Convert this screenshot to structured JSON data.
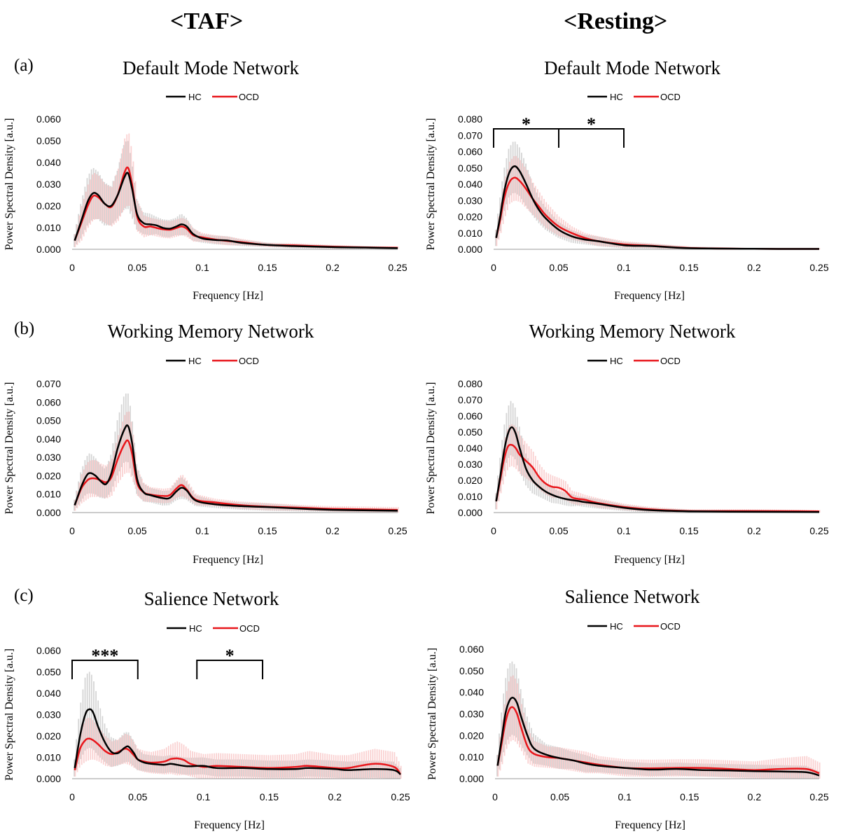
{
  "headers": {
    "left": "<TAF>",
    "right": "<Resting>"
  },
  "panel_letters": [
    "(a)",
    "(b)",
    "(c)"
  ],
  "colors": {
    "hc": "#000000",
    "ocd": "#e8161b",
    "hc_band": "#c8c8c8",
    "ocd_band": "#f7b4b4"
  },
  "chart_data": [
    {
      "type": "line",
      "title": "Default Mode Network",
      "xlabel": "Frequency [Hz]",
      "ylabel": "Power Spectral Density [a.u.]",
      "xlim": [
        0,
        0.25
      ],
      "ylim": [
        0,
        0.06
      ],
      "yticks": [
        "0.000",
        "0.010",
        "0.020",
        "0.030",
        "0.040",
        "0.050",
        "0.060"
      ],
      "xticks": [
        "0",
        "0.05",
        "0.1",
        "0.15",
        "0.2",
        "0.25"
      ],
      "x": [
        0.002,
        0.007,
        0.012,
        0.016,
        0.02,
        0.025,
        0.03,
        0.035,
        0.04,
        0.043,
        0.046,
        0.05,
        0.055,
        0.06,
        0.065,
        0.07,
        0.075,
        0.08,
        0.084,
        0.088,
        0.093,
        0.1,
        0.11,
        0.12,
        0.13,
        0.15,
        0.17,
        0.2,
        0.225,
        0.25
      ],
      "series": [
        {
          "name": "HC",
          "values": [
            0.004,
            0.013,
            0.022,
            0.0258,
            0.025,
            0.021,
            0.02,
            0.025,
            0.033,
            0.035,
            0.028,
            0.016,
            0.012,
            0.0115,
            0.011,
            0.0098,
            0.0095,
            0.0105,
            0.0115,
            0.0105,
            0.007,
            0.005,
            0.0043,
            0.004,
            0.003,
            0.002,
            0.0015,
            0.001,
            0.0008,
            0.0005
          ],
          "err": [
            0.003,
            0.008,
            0.011,
            0.012,
            0.011,
            0.01,
            0.009,
            0.011,
            0.015,
            0.016,
            0.013,
            0.007,
            0.005,
            0.005,
            0.004,
            0.004,
            0.004,
            0.004,
            0.005,
            0.004,
            0.003,
            0.002,
            0.002,
            0.002,
            0.0015,
            0.001,
            0.001,
            0.0008,
            0.0006,
            0.0005
          ]
        },
        {
          "name": "OCD",
          "values": [
            0.004,
            0.012,
            0.02,
            0.0245,
            0.024,
            0.021,
            0.0195,
            0.025,
            0.035,
            0.0375,
            0.03,
            0.015,
            0.0105,
            0.0105,
            0.0098,
            0.0092,
            0.009,
            0.0098,
            0.0105,
            0.0095,
            0.0065,
            0.0055,
            0.0045,
            0.0038,
            0.0033,
            0.002,
            0.0018,
            0.0012,
            0.0009,
            0.0007
          ],
          "err": [
            0.003,
            0.008,
            0.01,
            0.011,
            0.01,
            0.009,
            0.009,
            0.012,
            0.016,
            0.017,
            0.014,
            0.007,
            0.005,
            0.004,
            0.004,
            0.004,
            0.004,
            0.004,
            0.004,
            0.004,
            0.003,
            0.002,
            0.002,
            0.002,
            0.0015,
            0.001,
            0.001,
            0.0008,
            0.0006,
            0.0005
          ]
        }
      ],
      "significance": []
    },
    {
      "type": "line",
      "title": "Default Mode Network",
      "xlabel": "Frequency [Hz]",
      "ylabel": "Power Spectral Density [a.u.]",
      "xlim": [
        0,
        0.25
      ],
      "ylim": [
        0,
        0.08
      ],
      "yticks": [
        "0.000",
        "0.010",
        "0.020",
        "0.030",
        "0.040",
        "0.050",
        "0.060",
        "0.070",
        "0.080"
      ],
      "xticks": [
        "0",
        "0.05",
        "0.1",
        "0.15",
        "0.2",
        "0.25"
      ],
      "x": [
        0.002,
        0.005,
        0.008,
        0.012,
        0.016,
        0.02,
        0.025,
        0.03,
        0.035,
        0.04,
        0.05,
        0.06,
        0.07,
        0.08,
        0.1,
        0.12,
        0.15,
        0.2,
        0.25
      ],
      "series": [
        {
          "name": "HC",
          "values": [
            0.007,
            0.02,
            0.035,
            0.047,
            0.051,
            0.048,
            0.04,
            0.031,
            0.024,
            0.019,
            0.012,
            0.008,
            0.006,
            0.005,
            0.0025,
            0.002,
            0.0007,
            0.0003,
            0.0002
          ],
          "err": [
            0.005,
            0.01,
            0.013,
            0.015,
            0.016,
            0.015,
            0.013,
            0.01,
            0.008,
            0.007,
            0.005,
            0.004,
            0.003,
            0.003,
            0.002,
            0.0015,
            0.001,
            0.0005,
            0.0004
          ]
        },
        {
          "name": "OCD",
          "values": [
            0.007,
            0.018,
            0.031,
            0.041,
            0.044,
            0.042,
            0.037,
            0.031,
            0.026,
            0.021,
            0.014,
            0.01,
            0.007,
            0.005,
            0.003,
            0.0022,
            0.0008,
            0.0003,
            0.0002
          ],
          "err": [
            0.005,
            0.009,
            0.012,
            0.013,
            0.014,
            0.013,
            0.012,
            0.01,
            0.009,
            0.008,
            0.006,
            0.004,
            0.003,
            0.003,
            0.002,
            0.0015,
            0.001,
            0.0005,
            0.0004
          ]
        }
      ],
      "significance": [
        {
          "range": [
            0,
            0.05
          ],
          "label": "*"
        },
        {
          "range": [
            0.05,
            0.1
          ],
          "label": "*"
        }
      ]
    },
    {
      "type": "line",
      "title": "Working Memory Network",
      "xlabel": "Frequency [Hz]",
      "ylabel": "Power Spectral Density [a.u.]",
      "xlim": [
        0,
        0.25
      ],
      "ylim": [
        0,
        0.07
      ],
      "yticks": [
        "0.000",
        "0.010",
        "0.020",
        "0.030",
        "0.040",
        "0.050",
        "0.060",
        "0.070"
      ],
      "xticks": [
        "0",
        "0.05",
        "0.1",
        "0.15",
        "0.2",
        "0.25"
      ],
      "x": [
        0.002,
        0.007,
        0.011,
        0.014,
        0.018,
        0.022,
        0.026,
        0.03,
        0.035,
        0.04,
        0.043,
        0.046,
        0.05,
        0.055,
        0.06,
        0.07,
        0.075,
        0.08,
        0.084,
        0.088,
        0.095,
        0.11,
        0.13,
        0.15,
        0.18,
        0.2,
        0.25
      ],
      "series": [
        {
          "name": "HC",
          "values": [
            0.004,
            0.014,
            0.02,
            0.0215,
            0.02,
            0.017,
            0.0155,
            0.021,
            0.035,
            0.045,
            0.047,
            0.038,
            0.018,
            0.011,
            0.0095,
            0.0078,
            0.008,
            0.0115,
            0.0135,
            0.012,
            0.0065,
            0.0045,
            0.0035,
            0.003,
            0.002,
            0.0015,
            0.001
          ],
          "err": [
            0.003,
            0.008,
            0.01,
            0.011,
            0.01,
            0.009,
            0.008,
            0.01,
            0.015,
            0.018,
            0.019,
            0.016,
            0.008,
            0.005,
            0.004,
            0.004,
            0.004,
            0.005,
            0.006,
            0.005,
            0.003,
            0.002,
            0.002,
            0.002,
            0.0015,
            0.001,
            0.001
          ]
        },
        {
          "name": "OCD",
          "values": [
            0.004,
            0.013,
            0.017,
            0.0185,
            0.0185,
            0.0175,
            0.0165,
            0.019,
            0.029,
            0.037,
            0.039,
            0.032,
            0.016,
            0.011,
            0.0098,
            0.009,
            0.0095,
            0.013,
            0.015,
            0.0125,
            0.007,
            0.0055,
            0.004,
            0.0032,
            0.0025,
            0.002,
            0.0015
          ],
          "err": [
            0.003,
            0.008,
            0.01,
            0.01,
            0.01,
            0.009,
            0.009,
            0.01,
            0.013,
            0.016,
            0.017,
            0.014,
            0.007,
            0.005,
            0.004,
            0.004,
            0.004,
            0.005,
            0.006,
            0.005,
            0.003,
            0.002,
            0.002,
            0.002,
            0.0015,
            0.0015,
            0.0015
          ]
        }
      ],
      "significance": []
    },
    {
      "type": "line",
      "title": "Working Memory Network",
      "xlabel": "Frequency [Hz]",
      "ylabel": "Power Spectral Density [a.u.]",
      "xlim": [
        0,
        0.25
      ],
      "ylim": [
        0,
        0.08
      ],
      "yticks": [
        "0.000",
        "0.010",
        "0.020",
        "0.030",
        "0.040",
        "0.050",
        "0.060",
        "0.070",
        "0.080"
      ],
      "xticks": [
        "0",
        "0.05",
        "0.1",
        "0.15",
        "0.2",
        "0.25"
      ],
      "x": [
        0.002,
        0.005,
        0.008,
        0.011,
        0.014,
        0.017,
        0.02,
        0.025,
        0.03,
        0.035,
        0.04,
        0.045,
        0.05,
        0.055,
        0.06,
        0.065,
        0.07,
        0.08,
        0.1,
        0.12,
        0.15,
        0.2,
        0.25
      ],
      "series": [
        {
          "name": "HC",
          "values": [
            0.007,
            0.022,
            0.038,
            0.049,
            0.053,
            0.049,
            0.04,
            0.027,
            0.02,
            0.016,
            0.013,
            0.011,
            0.0095,
            0.0085,
            0.0078,
            0.0072,
            0.0065,
            0.0055,
            0.003,
            0.0015,
            0.0008,
            0.0005,
            0.0003
          ],
          "err": [
            0.005,
            0.01,
            0.014,
            0.016,
            0.017,
            0.016,
            0.014,
            0.01,
            0.008,
            0.006,
            0.005,
            0.005,
            0.004,
            0.004,
            0.004,
            0.003,
            0.003,
            0.003,
            0.002,
            0.0015,
            0.001,
            0.0008,
            0.0005
          ]
        },
        {
          "name": "OCD",
          "values": [
            0.007,
            0.02,
            0.033,
            0.041,
            0.042,
            0.04,
            0.036,
            0.032,
            0.028,
            0.022,
            0.018,
            0.016,
            0.0155,
            0.0135,
            0.0095,
            0.0085,
            0.008,
            0.006,
            0.0035,
            0.002,
            0.001,
            0.001,
            0.0008
          ],
          "err": [
            0.005,
            0.009,
            0.012,
            0.013,
            0.013,
            0.013,
            0.012,
            0.011,
            0.01,
            0.008,
            0.007,
            0.007,
            0.006,
            0.006,
            0.004,
            0.004,
            0.003,
            0.003,
            0.002,
            0.0015,
            0.001,
            0.001,
            0.0008
          ]
        }
      ],
      "significance": []
    },
    {
      "type": "line",
      "title": "Salience Network",
      "xlabel": "Frequency [Hz]",
      "ylabel": "Power Spectral Density [a.u.]",
      "xlim": [
        0,
        0.25
      ],
      "ylim": [
        0,
        0.06
      ],
      "yticks": [
        "0.000",
        "0.010",
        "0.020",
        "0.030",
        "0.040",
        "0.050",
        "0.060"
      ],
      "xticks": [
        "0",
        "0.05",
        "0.1",
        "0.15",
        "0.2",
        "0.25"
      ],
      "x": [
        0.002,
        0.006,
        0.01,
        0.013,
        0.016,
        0.02,
        0.025,
        0.03,
        0.035,
        0.04,
        0.043,
        0.047,
        0.05,
        0.055,
        0.06,
        0.07,
        0.075,
        0.08,
        0.085,
        0.09,
        0.1,
        0.11,
        0.13,
        0.15,
        0.17,
        0.18,
        0.2,
        0.21,
        0.23,
        0.245,
        0.25
      ],
      "series": [
        {
          "name": "HC",
          "values": [
            0.005,
            0.02,
            0.03,
            0.0325,
            0.031,
            0.024,
            0.017,
            0.0125,
            0.012,
            0.0145,
            0.015,
            0.012,
            0.009,
            0.0075,
            0.007,
            0.0065,
            0.007,
            0.0065,
            0.006,
            0.0058,
            0.006,
            0.005,
            0.005,
            0.0045,
            0.0045,
            0.005,
            0.0045,
            0.004,
            0.0045,
            0.004,
            0.002
          ],
          "err": [
            0.004,
            0.012,
            0.017,
            0.018,
            0.017,
            0.013,
            0.009,
            0.007,
            0.006,
            0.007,
            0.007,
            0.006,
            0.005,
            0.004,
            0.004,
            0.004,
            0.004,
            0.004,
            0.004,
            0.004,
            0.004,
            0.004,
            0.004,
            0.004,
            0.004,
            0.004,
            0.004,
            0.004,
            0.004,
            0.004,
            0.003
          ]
        },
        {
          "name": "OCD",
          "values": [
            0.004,
            0.014,
            0.018,
            0.0188,
            0.018,
            0.016,
            0.013,
            0.0115,
            0.0125,
            0.014,
            0.0135,
            0.011,
            0.009,
            0.008,
            0.0075,
            0.008,
            0.0092,
            0.0095,
            0.0088,
            0.007,
            0.0055,
            0.006,
            0.0055,
            0.005,
            0.0055,
            0.006,
            0.005,
            0.005,
            0.007,
            0.0055,
            0.002
          ],
          "err": [
            0.003,
            0.008,
            0.01,
            0.01,
            0.009,
            0.008,
            0.007,
            0.006,
            0.006,
            0.007,
            0.007,
            0.006,
            0.005,
            0.005,
            0.005,
            0.006,
            0.007,
            0.008,
            0.007,
            0.006,
            0.006,
            0.006,
            0.006,
            0.006,
            0.006,
            0.007,
            0.006,
            0.006,
            0.007,
            0.007,
            0.004
          ]
        }
      ],
      "significance": [
        {
          "range": [
            0,
            0.05
          ],
          "label": "***"
        },
        {
          "range": [
            0.095,
            0.145
          ],
          "label": "*"
        }
      ]
    },
    {
      "type": "line",
      "title": "Salience Network",
      "xlabel": "Frequency [Hz]",
      "ylabel": "Power Spectral Density [a.u.]",
      "xlim": [
        0,
        0.25
      ],
      "ylim": [
        0,
        0.06
      ],
      "yticks": [
        "0.000",
        "0.010",
        "0.020",
        "0.030",
        "0.040",
        "0.050",
        "0.060"
      ],
      "xticks": [
        "0",
        "0.05",
        "0.1",
        "0.15",
        "0.2",
        "0.25"
      ],
      "x": [
        0.002,
        0.005,
        0.008,
        0.011,
        0.014,
        0.017,
        0.02,
        0.025,
        0.03,
        0.04,
        0.05,
        0.06,
        0.07,
        0.08,
        0.1,
        0.12,
        0.14,
        0.16,
        0.18,
        0.2,
        0.22,
        0.24,
        0.25
      ],
      "series": [
        {
          "name": "HC",
          "values": [
            0.006,
            0.018,
            0.03,
            0.036,
            0.0375,
            0.035,
            0.029,
            0.02,
            0.014,
            0.011,
            0.0095,
            0.0085,
            0.007,
            0.006,
            0.005,
            0.0042,
            0.0045,
            0.004,
            0.0038,
            0.0035,
            0.0033,
            0.003,
            0.0015
          ],
          "err": [
            0.005,
            0.011,
            0.015,
            0.017,
            0.017,
            0.016,
            0.013,
            0.009,
            0.007,
            0.005,
            0.005,
            0.004,
            0.004,
            0.003,
            0.003,
            0.003,
            0.003,
            0.003,
            0.003,
            0.003,
            0.003,
            0.003,
            0.002
          ]
        },
        {
          "name": "OCD",
          "values": [
            0.006,
            0.016,
            0.026,
            0.032,
            0.033,
            0.03,
            0.024,
            0.015,
            0.0115,
            0.01,
            0.0095,
            0.0085,
            0.0075,
            0.0065,
            0.005,
            0.0048,
            0.005,
            0.005,
            0.0045,
            0.004,
            0.0045,
            0.0045,
            0.0025
          ],
          "err": [
            0.005,
            0.01,
            0.013,
            0.015,
            0.015,
            0.014,
            0.011,
            0.008,
            0.006,
            0.005,
            0.005,
            0.005,
            0.005,
            0.004,
            0.004,
            0.004,
            0.004,
            0.004,
            0.004,
            0.004,
            0.005,
            0.006,
            0.005
          ]
        }
      ],
      "significance": []
    }
  ]
}
